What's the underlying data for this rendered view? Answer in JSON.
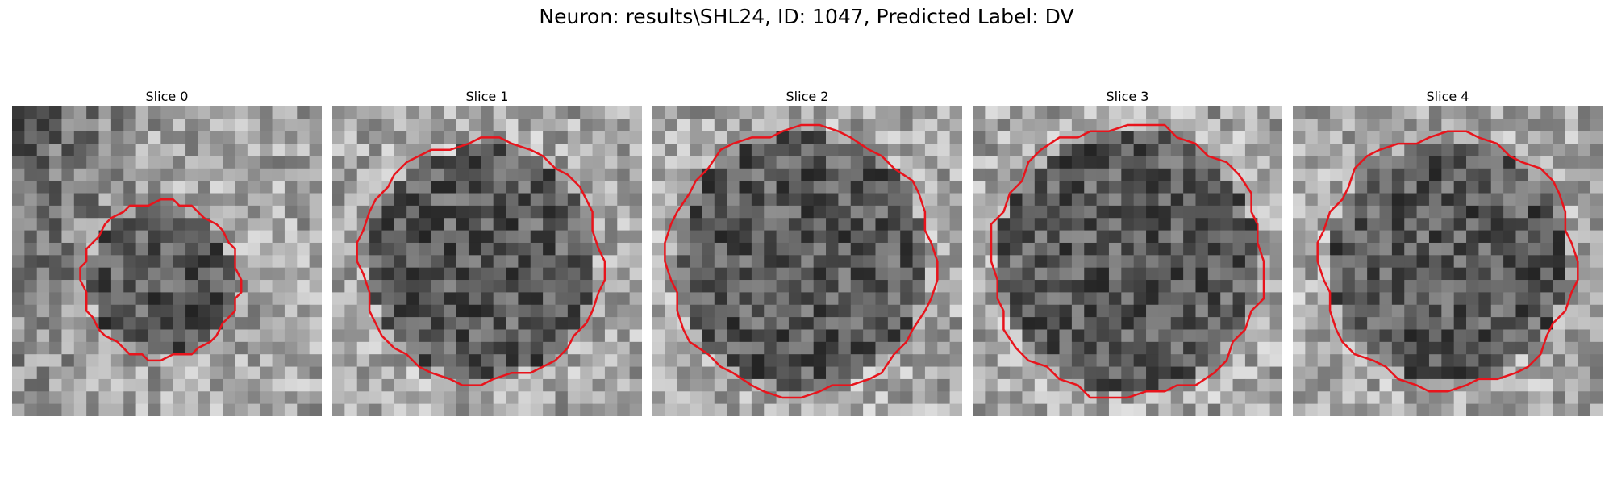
{
  "figure": {
    "title": "Neuron: results\\SHL24, ID: 1047, Predicted Label: DV"
  },
  "colors": {
    "contour": "#e8141c",
    "background": "#ffffff"
  },
  "slices": [
    {
      "title": "Slice 0",
      "seed": 11,
      "bg_dark_left": true,
      "cx": 12,
      "cy": 14,
      "r": 6.3,
      "bright_ring": false
    },
    {
      "title": "Slice 1",
      "seed": 23,
      "bg_dark_left": false,
      "cx": 12,
      "cy": 12.5,
      "r": 9.8,
      "bright_ring": true
    },
    {
      "title": "Slice 2",
      "seed": 37,
      "bg_dark_left": false,
      "cx": 12,
      "cy": 12.5,
      "r": 10.8,
      "bright_ring": true
    },
    {
      "title": "Slice 3",
      "seed": 41,
      "bg_dark_left": false,
      "cx": 12.5,
      "cy": 12.5,
      "r": 11.0,
      "bright_ring": true
    },
    {
      "title": "Slice 4",
      "seed": 53,
      "bg_dark_left": false,
      "cx": 12.5,
      "cy": 12.5,
      "r": 10.3,
      "bright_ring": true
    }
  ]
}
